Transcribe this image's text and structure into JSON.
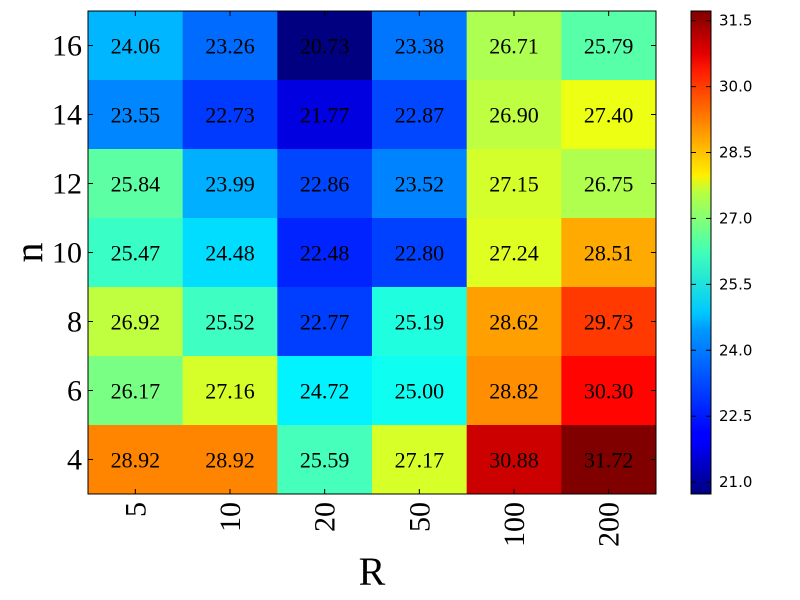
{
  "chart_data": {
    "type": "heatmap",
    "xlabel": "R",
    "ylabel": "n",
    "x_categories": [
      "5",
      "10",
      "20",
      "50",
      "100",
      "200"
    ],
    "y_categories": [
      "16",
      "14",
      "12",
      "10",
      "8",
      "6",
      "4"
    ],
    "values": [
      [
        24.06,
        23.26,
        20.73,
        23.38,
        26.71,
        25.79
      ],
      [
        23.55,
        22.73,
        21.77,
        22.87,
        26.9,
        27.4
      ],
      [
        25.84,
        23.99,
        22.86,
        23.52,
        27.15,
        26.75
      ],
      [
        25.47,
        24.48,
        22.48,
        22.8,
        27.24,
        28.51
      ],
      [
        26.92,
        25.52,
        22.77,
        25.19,
        28.62,
        29.73
      ],
      [
        26.17,
        27.16,
        24.72,
        25.0,
        28.82,
        30.3
      ],
      [
        28.92,
        28.92,
        25.59,
        27.17,
        30.88,
        31.72
      ]
    ],
    "value_labels": [
      [
        "24.06",
        "23.26",
        "20.73",
        "23.38",
        "26.71",
        "25.79"
      ],
      [
        "23.55",
        "22.73",
        "21.77",
        "22.87",
        "26.90",
        "27.40"
      ],
      [
        "25.84",
        "23.99",
        "22.86",
        "23.52",
        "27.15",
        "26.75"
      ],
      [
        "25.47",
        "24.48",
        "22.48",
        "22.80",
        "27.24",
        "28.51"
      ],
      [
        "26.92",
        "25.52",
        "22.77",
        "25.19",
        "28.62",
        "29.73"
      ],
      [
        "26.17",
        "27.16",
        "24.72",
        "25.00",
        "28.82",
        "30.30"
      ],
      [
        "28.92",
        "28.92",
        "25.59",
        "27.17",
        "30.88",
        "31.72"
      ]
    ],
    "colormap": "jet",
    "color_range": [
      20.73,
      31.72
    ],
    "colorbar_ticks": [
      "21.0",
      "22.5",
      "24.0",
      "25.5",
      "27.0",
      "28.5",
      "30.0",
      "31.5"
    ],
    "colorbar_tick_values": [
      21.0,
      22.5,
      24.0,
      25.5,
      27.0,
      28.5,
      30.0,
      31.5
    ],
    "grid": false
  }
}
